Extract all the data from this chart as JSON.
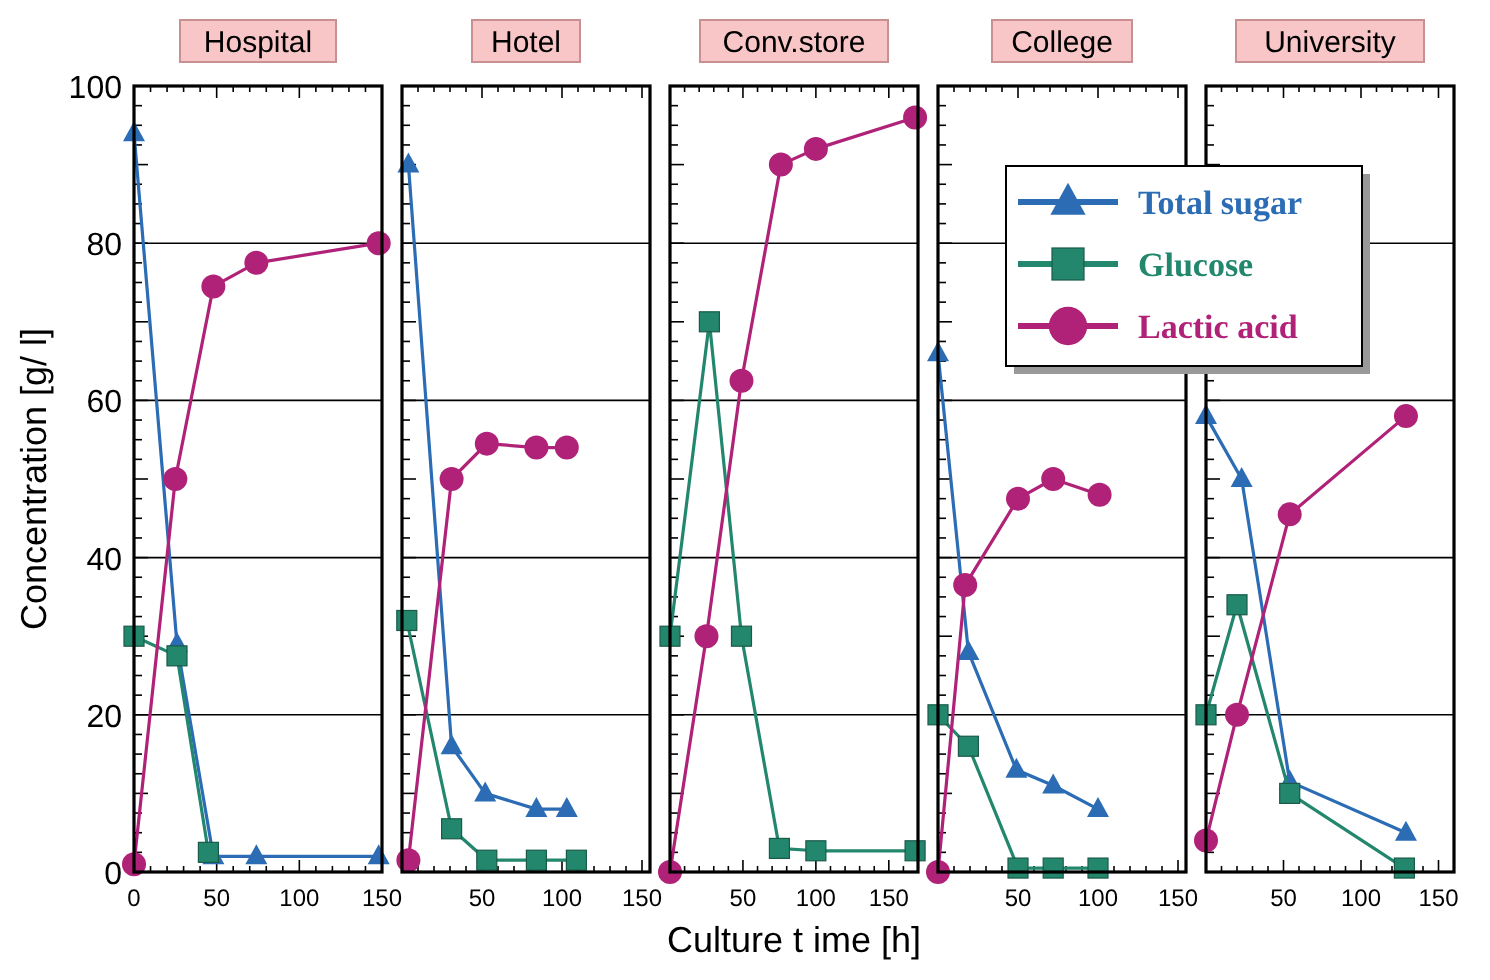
{
  "chart_data": [
    {
      "type": "line",
      "title": "Hospital",
      "ylabel": "Concentration [g/ l]",
      "xlim": [
        0,
        150
      ],
      "xticks": [
        0,
        50,
        100,
        150
      ],
      "ylim": [
        0,
        100
      ],
      "yticks": [
        0,
        20,
        40,
        60,
        80,
        100
      ],
      "grid": "y",
      "series": [
        {
          "color": "#2b6cb5",
          "marker": "triangle",
          "x": [
            0,
            26,
            48,
            74,
            148
          ],
          "values": [
            94,
            29,
            2,
            2,
            2
          ]
        },
        {
          "color": "#22876c",
          "marker": "square",
          "x": [
            0,
            26,
            45
          ],
          "values": [
            30,
            27.5,
            2.5
          ]
        },
        {
          "color": "#b02278",
          "marker": "circle",
          "x": [
            0,
            25,
            48,
            74,
            148
          ],
          "values": [
            1,
            50,
            74.5,
            77.5,
            80
          ]
        }
      ]
    },
    {
      "type": "line",
      "title": "Hotel",
      "xlim": [
        0,
        155
      ],
      "xticks": [
        50,
        100,
        150
      ],
      "ylim": [
        0,
        100
      ],
      "yticks": [
        0,
        20,
        40,
        60,
        80,
        100
      ],
      "grid": "y",
      "tick_labels": "x",
      "series": [
        {
          "color": "#2b6cb5",
          "marker": "triangle",
          "x": [
            4,
            31,
            52,
            84,
            103
          ],
          "values": [
            90,
            16,
            10,
            8,
            8
          ]
        },
        {
          "color": "#22876c",
          "marker": "square",
          "x": [
            3,
            31,
            53,
            84,
            109
          ],
          "values": [
            32,
            5.5,
            1.5,
            1.5,
            1.5
          ]
        },
        {
          "color": "#b02278",
          "marker": "circle",
          "x": [
            4,
            31,
            53,
            84,
            103
          ],
          "values": [
            1.5,
            50,
            54.5,
            54,
            54
          ]
        }
      ]
    },
    {
      "type": "line",
      "title": "Conv.store",
      "xlabel": "Culture t ime [h]",
      "xlim": [
        0,
        170
      ],
      "xticks": [
        50,
        100,
        150
      ],
      "ylim": [
        0,
        100
      ],
      "yticks": [
        0,
        20,
        40,
        60,
        80,
        100
      ],
      "grid": "y",
      "tick_labels": "x",
      "series": [
        {
          "color": "#22876c",
          "marker": "square",
          "x": [
            0,
            27,
            49,
            75,
            100,
            168
          ],
          "values": [
            30,
            70,
            30,
            3,
            2.7,
            2.7
          ]
        },
        {
          "color": "#b02278",
          "marker": "circle",
          "x": [
            0,
            25,
            49,
            76,
            100,
            168
          ],
          "values": [
            0,
            30,
            62.5,
            90,
            92,
            96
          ]
        }
      ]
    },
    {
      "type": "line",
      "title": "College",
      "xlim": [
        0,
        155
      ],
      "xticks": [
        50,
        100,
        150
      ],
      "ylim": [
        0,
        100
      ],
      "yticks": [
        0,
        20,
        40,
        60,
        80,
        100
      ],
      "grid": "y",
      "tick_labels": "x",
      "legend": "top right",
      "series": [
        {
          "name": "Total sugar",
          "color": "#2b6cb5",
          "marker": "triangle",
          "x": [
            0,
            19,
            49,
            72,
            100
          ],
          "values": [
            66,
            28,
            13,
            11,
            8
          ]
        },
        {
          "name": "Glucose",
          "color": "#22876c",
          "marker": "square",
          "x": [
            0,
            19,
            50,
            72,
            100
          ],
          "values": [
            20,
            16,
            0.5,
            0.5,
            0.5
          ]
        },
        {
          "name": "Lactic acid",
          "color": "#b02278",
          "marker": "circle",
          "x": [
            0,
            17,
            50,
            72,
            101
          ],
          "values": [
            0,
            36.5,
            47.5,
            50,
            48
          ]
        }
      ]
    },
    {
      "type": "line",
      "title": "University",
      "xlim": [
        0,
        160
      ],
      "xticks": [
        50,
        100,
        150
      ],
      "ylim": [
        0,
        100
      ],
      "yticks": [
        0,
        20,
        40,
        60,
        80,
        100
      ],
      "grid": "y",
      "tick_labels": "x",
      "series": [
        {
          "color": "#2b6cb5",
          "marker": "triangle",
          "x": [
            0,
            23,
            54,
            129
          ],
          "values": [
            58,
            50,
            11.5,
            5
          ]
        },
        {
          "color": "#22876c",
          "marker": "square",
          "x": [
            0,
            20,
            54,
            128
          ],
          "values": [
            20,
            34,
            10,
            0.5
          ]
        },
        {
          "color": "#b02278",
          "marker": "circle",
          "x": [
            0,
            20,
            54,
            129
          ],
          "values": [
            4,
            20,
            45.5,
            58
          ]
        }
      ]
    }
  ]
}
